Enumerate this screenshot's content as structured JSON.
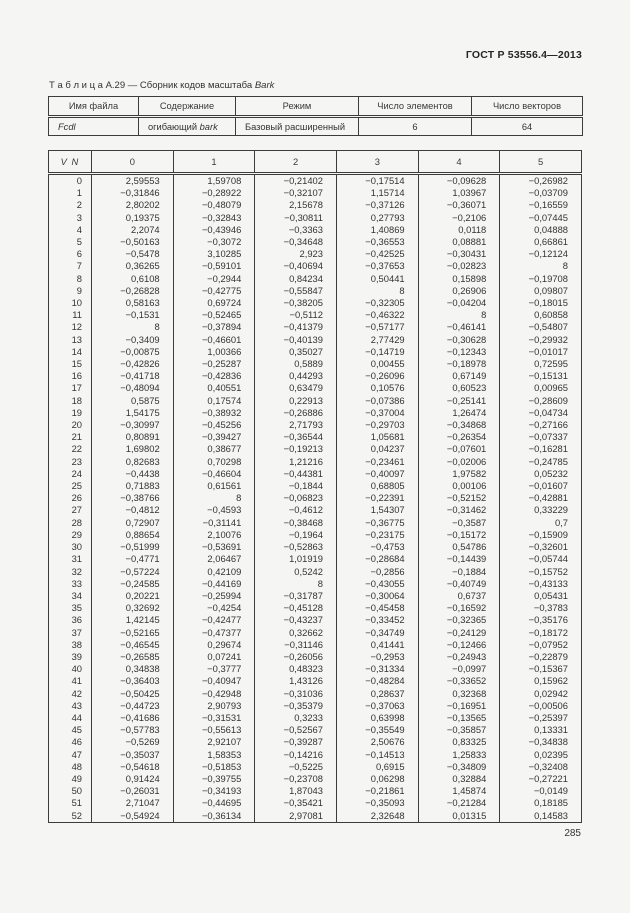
{
  "page": {
    "standard_ref": "ГОСТ Р 53556.4—2013",
    "page_number": "285"
  },
  "caption": {
    "prefix": "Т а б л и ц а  А.29 — Сборник кодов масштаба ",
    "italic": "Bark"
  },
  "info_table": {
    "headers": [
      "Имя файла",
      "Содержание",
      "Режим",
      "Число элементов",
      "Число векторов"
    ],
    "row": {
      "file_name": "Fcdl",
      "content_prefix": "огибающий ",
      "content_italic": "bark",
      "mode": "Базовый расширенный",
      "num_elements": "6",
      "num_vectors": "64"
    }
  },
  "main_table": {
    "corner_header": "V N",
    "col_headers": [
      "0",
      "1",
      "2",
      "3",
      "4",
      "5"
    ],
    "rows": [
      [
        "0",
        "2,59553",
        "1,59708",
        "−0,21402",
        "−0,17514",
        "−0,09628",
        "−0,26982"
      ],
      [
        "1",
        "−0,31846",
        "−0,28922",
        "−0,32107",
        "1,15714",
        "1,03967",
        "−0,03709"
      ],
      [
        "2",
        "2,80202",
        "−0,48079",
        "2,15678",
        "−0,37126",
        "−0,36071",
        "−0,16559"
      ],
      [
        "3",
        "0,19375",
        "−0,32843",
        "−0,30811",
        "0,27793",
        "−0,2106",
        "−0,07445"
      ],
      [
        "4",
        "2,2074",
        "−0,43946",
        "−0,3363",
        "1,40869",
        "0,0118",
        "0,04888"
      ],
      [
        "5",
        "−0,50163",
        "−0,3072",
        "−0,34648",
        "−0,36553",
        "0,08881",
        "0,66861"
      ],
      [
        "6",
        "−0,5478",
        "3,10285",
        "2,923",
        "−0,42525",
        "−0,30431",
        "−0,12124"
      ],
      [
        "7",
        "0,36265",
        "−0,59101",
        "−0,40694",
        "−0,37653",
        "−0,02823",
        "8"
      ],
      [
        "8",
        "0,6108",
        "−0,2944",
        "0,84234",
        "0,50441",
        "0,15898",
        "−0,19708"
      ],
      [
        "9",
        "−0,26828",
        "−0,42775",
        "−0,55847",
        "8",
        "0,26906",
        "0,09807"
      ],
      [
        "10",
        "0,58163",
        "0,69724",
        "−0,38205",
        "−0,32305",
        "−0,04204",
        "−0,18015"
      ],
      [
        "11",
        "−0,1531",
        "−0,52465",
        "−0,5112",
        "−0,46322",
        "8",
        "0,60858"
      ],
      [
        "12",
        "8",
        "−0,37894",
        "−0,41379",
        "−0,57177",
        "−0,46141",
        "−0,54807"
      ],
      [
        "13",
        "−0,3409",
        "−0,46601",
        "−0,40139",
        "2,77429",
        "−0,30628",
        "−0,29932"
      ],
      [
        "14",
        "−0,00875",
        "1,00366",
        "0,35027",
        "−0,14719",
        "−0,12343",
        "−0,01017"
      ],
      [
        "15",
        "−0,42826",
        "−0,25287",
        "0,5889",
        "0,00455",
        "−0,18978",
        "0,72595"
      ],
      [
        "16",
        "−0,41718",
        "−0,42836",
        "0,44293",
        "−0,26096",
        "0,67149",
        "−0,15131"
      ],
      [
        "17",
        "−0,48094",
        "0,40551",
        "0,63479",
        "0,10576",
        "0,60523",
        "0,00965"
      ],
      [
        "18",
        "0,5875",
        "0,17574",
        "0,22913",
        "−0,07386",
        "−0,25141",
        "−0,28609"
      ],
      [
        "19",
        "1,54175",
        "−0,38932",
        "−0,26886",
        "−0,37004",
        "1,26474",
        "−0,04734"
      ],
      [
        "20",
        "−0,30997",
        "−0,45256",
        "2,71793",
        "−0,29703",
        "−0,34868",
        "−0,27166"
      ],
      [
        "21",
        "0,80891",
        "−0,39427",
        "−0,36544",
        "1,05681",
        "−0,26354",
        "−0,07337"
      ],
      [
        "22",
        "1,69802",
        "0,38677",
        "−0,19213",
        "0,04237",
        "−0,07601",
        "−0,16281"
      ],
      [
        "23",
        "0,82683",
        "0,70298",
        "1,21216",
        "−0,23461",
        "−0,02006",
        "−0,24785"
      ],
      [
        "24",
        "−0,4438",
        "−0,46604",
        "−0,44381",
        "−0,40097",
        "1,97582",
        "0,05232"
      ],
      [
        "25",
        "0,71883",
        "0,61561",
        "−0,1844",
        "0,68805",
        "0,00106",
        "−0,01607"
      ],
      [
        "26",
        "−0,38766",
        "8",
        "−0,06823",
        "−0,22391",
        "−0,52152",
        "−0,42881"
      ],
      [
        "27",
        "−0,4812",
        "−0,4593",
        "−0,4612",
        "1,54307",
        "−0,31462",
        "0,33229"
      ],
      [
        "28",
        "0,72907",
        "−0,31141",
        "−0,38468",
        "−0,36775",
        "−0,3587",
        "0,7"
      ],
      [
        "29",
        "0,88654",
        "2,10076",
        "−0,1964",
        "−0,23175",
        "−0,15172",
        "−0,15909"
      ],
      [
        "30",
        "−0,51999",
        "−0,53691",
        "−0,52863",
        "−0,4753",
        "0,54786",
        "−0,32601"
      ],
      [
        "31",
        "−0,4771",
        "2,06467",
        "1,01919",
        "−0,28684",
        "−0,14439",
        "−0,05744"
      ],
      [
        "32",
        "−0,57224",
        "0,42109",
        "0,5242",
        "−0,2856",
        "−0,1884",
        "−0,15752"
      ],
      [
        "33",
        "−0,24585",
        "−0,44169",
        "8",
        "−0,43055",
        "−0,40749",
        "−0,43133"
      ],
      [
        "34",
        "0,20221",
        "−0,25994",
        "−0,31787",
        "−0,30064",
        "0,6737",
        "0,05431"
      ],
      [
        "35",
        "0,32692",
        "−0,4254",
        "−0,45128",
        "−0,45458",
        "−0,16592",
        "−0,3783"
      ],
      [
        "36",
        "1,42145",
        "−0,42477",
        "−0,43237",
        "−0,33452",
        "−0,32365",
        "−0,35176"
      ],
      [
        "37",
        "−0,52165",
        "−0,47377",
        "0,32662",
        "−0,34749",
        "−0,24129",
        "−0,18172"
      ],
      [
        "38",
        "−0,46545",
        "0,29674",
        "−0,31146",
        "0,41441",
        "−0,12466",
        "−0,07952"
      ],
      [
        "39",
        "−0,26585",
        "0,07241",
        "−0,26056",
        "−0,2953",
        "−0,24943",
        "−0,22879"
      ],
      [
        "40",
        "0,34838",
        "−0,3777",
        "0,48323",
        "−0,31334",
        "−0,0997",
        "−0,15367"
      ],
      [
        "41",
        "−0,36403",
        "−0,40947",
        "1,43126",
        "−0,48284",
        "−0,33652",
        "0,15962"
      ],
      [
        "42",
        "−0,50425",
        "−0,42948",
        "−0,31036",
        "0,28637",
        "0,32368",
        "0,02942"
      ],
      [
        "43",
        "−0,44723",
        "2,90793",
        "−0,35379",
        "−0,37063",
        "−0,16951",
        "−0,00506"
      ],
      [
        "44",
        "−0,41686",
        "−0,31531",
        "0,3233",
        "0,63998",
        "−0,13565",
        "−0,25397"
      ],
      [
        "45",
        "−0,57783",
        "−0,55613",
        "−0,52567",
        "−0,35549",
        "−0,35857",
        "0,13331"
      ],
      [
        "46",
        "−0,5269",
        "2,92107",
        "−0,39287",
        "2,50676",
        "0,83325",
        "−0,34838"
      ],
      [
        "47",
        "−0,35037",
        "1,58353",
        "−0,14216",
        "−0,14513",
        "1,25833",
        "0,02395"
      ],
      [
        "48",
        "−0,54618",
        "−0,51853",
        "−0,5225",
        "0,6915",
        "−0,34809",
        "−0,32408"
      ],
      [
        "49",
        "0,91424",
        "−0,39755",
        "−0,23708",
        "0,06298",
        "0,32884",
        "−0,27221"
      ],
      [
        "50",
        "−0,26031",
        "−0,34193",
        "1,87043",
        "−0,21861",
        "1,45874",
        "−0,0149"
      ],
      [
        "51",
        "2,71047",
        "−0,44695",
        "−0,35421",
        "−0,35093",
        "−0,21284",
        "0,18185"
      ],
      [
        "52",
        "−0,54924",
        "−0,36134",
        "2,97081",
        "2,32648",
        "0,01315",
        "0,14583"
      ]
    ]
  }
}
